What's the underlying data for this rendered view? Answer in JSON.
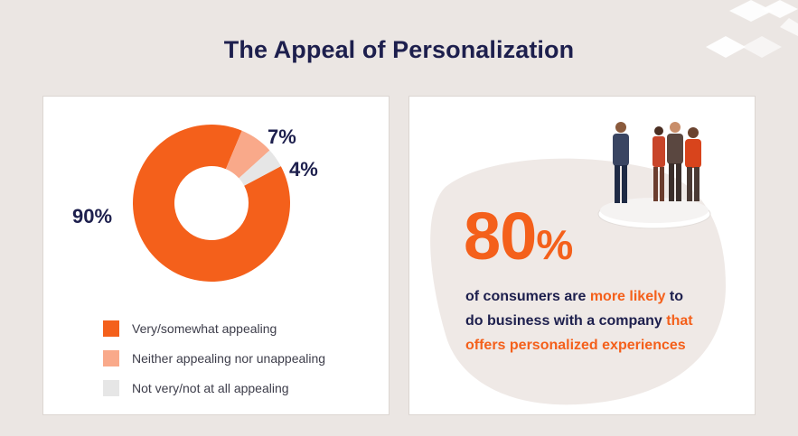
{
  "title": "The Appeal of Personalization",
  "chart_data": {
    "type": "pie",
    "title": "",
    "categories": [
      "Very/somewhat appealing",
      "Neither appealing nor unappealing",
      "Not very/not at all appealing"
    ],
    "values": [
      90,
      7,
      4
    ],
    "labels": [
      "90%",
      "7%",
      "4%"
    ],
    "colors": [
      "#f4601b",
      "#f9a98a",
      "#e6e6e6"
    ],
    "donut": true,
    "legend_position": "bottom-left"
  },
  "stat": {
    "number": "80",
    "percent_sign": "%",
    "line1_plain": "of consumers are ",
    "line1_highlight": "more likely",
    "line1_end": " to",
    "line2_plain": "do business with a company ",
    "line2_highlight": "that",
    "line3_highlight": "offers personalized experiences"
  },
  "colors": {
    "background": "#ebe6e3",
    "accent": "#f4601b",
    "navy": "#1d1f4d"
  }
}
